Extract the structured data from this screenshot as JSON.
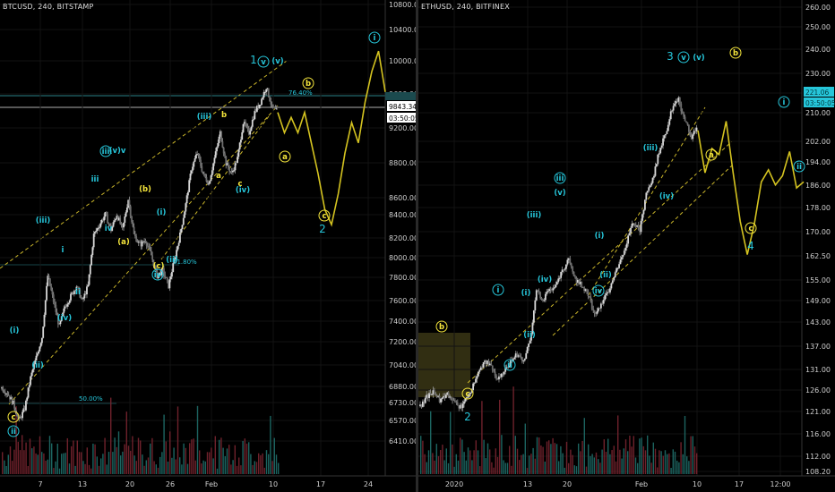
{
  "panes": [
    {
      "title": "BTCUSD, 240, BITSTAMP",
      "accent": "#26c6da",
      "y_ticks": [
        "10800.00",
        "10400.00",
        "10000.00",
        "9600.00",
        "9200.00",
        "8800.00",
        "8600.00",
        "8400.00",
        "8200.00",
        "8000.00",
        "7800.00",
        "7600.00",
        "7400.00",
        "7200.00",
        "7040.00",
        "6880.00",
        "6730.00",
        "6570.00",
        "6410.00"
      ],
      "x_ticks": [
        "7",
        "13",
        "20",
        "26",
        "Feb",
        "10",
        "17",
        "24"
      ],
      "price_tags": [
        {
          "text": "9843.34",
          "style": "white"
        },
        {
          "text": "03:50:05",
          "style": "white"
        }
      ],
      "fib_labels": [
        "76.40%",
        "61.80%",
        "50.00%"
      ],
      "wave_labels": [
        {
          "text": "1",
          "color": "cyan",
          "circled": false
        },
        {
          "text": "v",
          "color": "cyan",
          "circled": true
        },
        {
          "text": "(v)",
          "color": "cyan",
          "circled": false
        },
        {
          "text": "i",
          "color": "cyan",
          "circled": true
        },
        {
          "text": "b",
          "color": "yellow",
          "circled": true
        },
        {
          "text": "a",
          "color": "yellow",
          "circled": true
        },
        {
          "text": "c",
          "color": "yellow",
          "circled": true
        },
        {
          "text": "2",
          "color": "cyan",
          "circled": false
        },
        {
          "text": "(iii)",
          "color": "cyan",
          "circled": false
        },
        {
          "text": "b",
          "color": "yellow",
          "circled": false
        },
        {
          "text": "iii",
          "color": "cyan",
          "circled": true
        },
        {
          "text": "(v)v",
          "color": "cyan",
          "circled": false
        },
        {
          "text": "iii",
          "color": "cyan",
          "circled": false
        },
        {
          "text": "iv",
          "color": "cyan",
          "circled": false
        },
        {
          "text": "(b)",
          "color": "yellow",
          "circled": false
        },
        {
          "text": "(i)",
          "color": "cyan",
          "circled": false
        },
        {
          "text": "(a)",
          "color": "yellow",
          "circled": false
        },
        {
          "text": "(c)",
          "color": "yellow",
          "circled": false
        },
        {
          "text": "(ii)",
          "color": "cyan",
          "circled": false
        },
        {
          "text": "iv",
          "color": "cyan",
          "circled": true
        },
        {
          "text": "a",
          "color": "yellow",
          "circled": false
        },
        {
          "text": "c",
          "color": "yellow",
          "circled": false
        },
        {
          "text": "(iv)",
          "color": "cyan",
          "circled": false
        },
        {
          "text": "(iii)",
          "color": "cyan",
          "circled": false
        },
        {
          "text": "i",
          "color": "cyan",
          "circled": false
        },
        {
          "text": "ii",
          "color": "cyan",
          "circled": false
        },
        {
          "text": "(iv)",
          "color": "cyan",
          "circled": false
        },
        {
          "text": "(i)",
          "color": "cyan",
          "circled": false
        },
        {
          "text": "(ii)",
          "color": "cyan",
          "circled": false
        },
        {
          "text": "c",
          "color": "yellow",
          "circled": true
        },
        {
          "text": "ii",
          "color": "cyan",
          "circled": true
        }
      ]
    },
    {
      "title": "ETHUSD, 240, BITFINEX",
      "accent": "#26c6da",
      "y_ticks": [
        "260.00",
        "250.00",
        "240.00",
        "230.00",
        "221.06",
        "210.00",
        "202.00",
        "194.00",
        "186.00",
        "178.00",
        "170.00",
        "162.50",
        "155.00",
        "149.00",
        "143.00",
        "137.00",
        "131.00",
        "126.00",
        "121.00",
        "116.00",
        "112.00",
        "108.20"
      ],
      "x_ticks": [
        "2020",
        "13",
        "20",
        "Feb",
        "10",
        "17",
        "12:00"
      ],
      "price_tags": [
        {
          "text": "221.06",
          "style": "cyan"
        },
        {
          "text": "03:50:05",
          "style": "cyan"
        }
      ],
      "fib_labels": [],
      "wave_labels": [
        {
          "text": "3",
          "color": "cyan",
          "circled": false
        },
        {
          "text": "v",
          "color": "cyan",
          "circled": true
        },
        {
          "text": "(v)",
          "color": "cyan",
          "circled": false
        },
        {
          "text": "b",
          "color": "yellow",
          "circled": true
        },
        {
          "text": "i",
          "color": "cyan",
          "circled": true
        },
        {
          "text": "a",
          "color": "yellow",
          "circled": true
        },
        {
          "text": "ii",
          "color": "cyan",
          "circled": true
        },
        {
          "text": "c",
          "color": "yellow",
          "circled": true
        },
        {
          "text": "4",
          "color": "cyan",
          "circled": false
        },
        {
          "text": "(iii)",
          "color": "cyan",
          "circled": false
        },
        {
          "text": "(iv)",
          "color": "cyan",
          "circled": false
        },
        {
          "text": "iii",
          "color": "cyan",
          "circled": true
        },
        {
          "text": "(v)",
          "color": "cyan",
          "circled": false
        },
        {
          "text": "(iii)",
          "color": "cyan",
          "circled": false
        },
        {
          "text": "(iv)",
          "color": "cyan",
          "circled": false
        },
        {
          "text": "(i)",
          "color": "cyan",
          "circled": false
        },
        {
          "text": "(ii)",
          "color": "cyan",
          "circled": false
        },
        {
          "text": "iv",
          "color": "cyan",
          "circled": true
        },
        {
          "text": "i",
          "color": "cyan",
          "circled": true
        },
        {
          "text": "(i)",
          "color": "cyan",
          "circled": false
        },
        {
          "text": "(ii)",
          "color": "cyan",
          "circled": false
        },
        {
          "text": "ii",
          "color": "cyan",
          "circled": true
        },
        {
          "text": "b",
          "color": "yellow",
          "circled": true
        },
        {
          "text": "c",
          "color": "yellow",
          "circled": true
        },
        {
          "text": "2",
          "color": "cyan",
          "circled": false
        }
      ]
    }
  ],
  "chart_data": [
    {
      "type": "candlestick",
      "title": "BTCUSD, 240, BITSTAMP",
      "ylim": [
        6340,
        11000
      ],
      "x_ticks": [
        "7",
        "13",
        "20",
        "26",
        "Feb",
        "10",
        "17",
        "24"
      ],
      "series": [
        {
          "name": "price",
          "values": [
            7200,
            7150,
            7050,
            6880,
            7000,
            7300,
            7500,
            7700,
            8300,
            8050,
            7800,
            8000,
            8100,
            8200,
            8050,
            8200,
            8700,
            8800,
            8900,
            8750,
            8900,
            8750,
            9050,
            8700,
            8600,
            8650,
            8500,
            8300,
            8350,
            8200,
            8450,
            8700,
            9000,
            9350,
            9500,
            9300,
            9200,
            9450,
            9700,
            9400,
            9300,
            9450,
            9800,
            9700,
            9900,
            10000,
            10150,
            9950,
            9900
          ]
        },
        {
          "name": "projection",
          "values": [
            9900,
            9700,
            9850,
            9700,
            9900,
            9600,
            9300,
            8950,
            8800,
            9100,
            9500,
            9800,
            9600,
            10000,
            10300,
            10500,
            10100
          ]
        }
      ]
    },
    {
      "type": "candlestick",
      "title": "ETHUSD, 240, BITFINEX",
      "ylim": [
        105,
        262
      ],
      "x_ticks": [
        "2020",
        "13",
        "20",
        "Feb",
        "10",
        "17",
        "12:00"
      ],
      "series": [
        {
          "name": "price",
          "values": [
            128,
            131,
            133,
            130,
            132,
            130,
            127,
            130,
            134,
            139,
            143,
            141,
            137,
            139,
            143,
            145,
            143,
            149,
            167,
            163,
            166,
            168,
            173,
            176,
            170,
            168,
            165,
            158,
            162,
            165,
            171,
            176,
            182,
            189,
            186,
            198,
            203,
            212,
            218,
            226,
            229,
            222,
            217,
            221
          ]
        },
        {
          "name": "projection",
          "values": [
            219,
            205,
            213,
            211,
            222,
            205,
            189,
            178,
            188,
            202,
            206,
            201,
            204,
            212,
            200,
            202
          ]
        }
      ]
    }
  ]
}
